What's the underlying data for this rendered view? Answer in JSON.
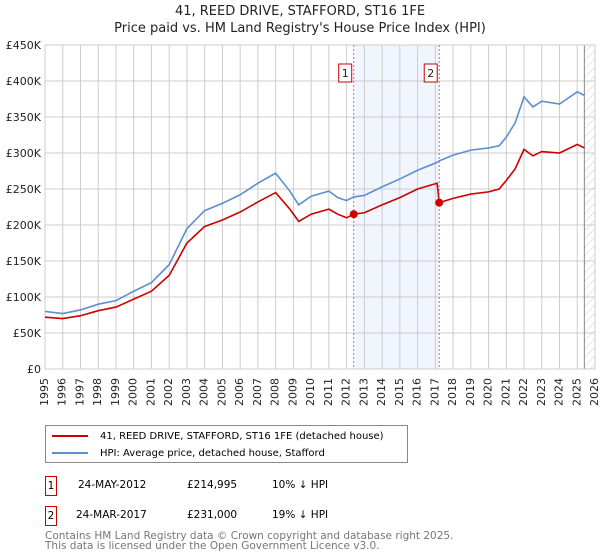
{
  "chart_data": {
    "type": "line",
    "title": "41, REED DRIVE, STAFFORD, ST16 1FE",
    "subtitle": "Price paid vs. HM Land Registry's House Price Index (HPI)",
    "xlim": [
      1995,
      2026
    ],
    "ylim": [
      0,
      450000
    ],
    "x_ticks": [
      "1995",
      "1996",
      "1997",
      "1998",
      "1999",
      "2000",
      "2001",
      "2002",
      "2003",
      "2004",
      "2005",
      "2006",
      "2007",
      "2008",
      "2009",
      "2010",
      "2011",
      "2012",
      "2013",
      "2014",
      "2015",
      "2016",
      "2017",
      "2018",
      "2019",
      "2020",
      "2021",
      "2022",
      "2023",
      "2024",
      "2025",
      "2026"
    ],
    "y_ticks": [
      {
        "v": 0,
        "label": "£0"
      },
      {
        "v": 50000,
        "label": "£50K"
      },
      {
        "v": 100000,
        "label": "£100K"
      },
      {
        "v": 150000,
        "label": "£150K"
      },
      {
        "v": 200000,
        "label": "£200K"
      },
      {
        "v": 250000,
        "label": "£250K"
      },
      {
        "v": 300000,
        "label": "£300K"
      },
      {
        "v": 350000,
        "label": "£350K"
      },
      {
        "v": 400000,
        "label": "£400K"
      },
      {
        "v": 450000,
        "label": "£450K"
      }
    ],
    "grid": true,
    "series": [
      {
        "name": "41, REED DRIVE, STAFFORD, ST16 1FE (detached house)",
        "color": "#cc0000",
        "x": [
          1995,
          1996,
          1997,
          1998,
          1999,
          2000,
          2001,
          2002,
          2003,
          2004,
          2005,
          2006,
          2007,
          2008,
          2008.8,
          2009.3,
          2010,
          2011,
          2011.5,
          2012.0,
          2012.4,
          2013,
          2014,
          2015,
          2016,
          2017.1,
          2017.22,
          2018,
          2019,
          2020,
          2020.6,
          2021,
          2021.5,
          2022,
          2022.5,
          2023,
          2024,
          2025,
          2025.4
        ],
        "y": [
          72000,
          70000,
          74000,
          81000,
          86000,
          97000,
          108000,
          130000,
          175000,
          198000,
          207000,
          218000,
          232000,
          245000,
          222000,
          205000,
          215000,
          222000,
          215000,
          210000,
          214995,
          217000,
          228000,
          238000,
          250000,
          258000,
          231000,
          237000,
          243000,
          246000,
          250000,
          262000,
          278000,
          305000,
          296000,
          302000,
          300000,
          312000,
          307000
        ]
      },
      {
        "name": "HPI: Average price, detached house, Stafford",
        "color": "#5b8fd0",
        "x": [
          1995,
          1996,
          1997,
          1998,
          1999,
          2000,
          2001,
          2002,
          2003,
          2004,
          2005,
          2006,
          2007,
          2008,
          2008.8,
          2009.3,
          2010,
          2011,
          2011.5,
          2012.0,
          2012.4,
          2013,
          2014,
          2015,
          2016,
          2017.1,
          2017.22,
          2018,
          2019,
          2020,
          2020.6,
          2021,
          2021.5,
          2022,
          2022.5,
          2023,
          2024,
          2025,
          2025.4
        ],
        "y": [
          80000,
          77000,
          82000,
          90000,
          95000,
          108000,
          120000,
          145000,
          195000,
          220000,
          230000,
          242000,
          258000,
          272000,
          247000,
          228000,
          240000,
          247000,
          238000,
          234000,
          239000,
          241000,
          253000,
          264000,
          276000,
          287000,
          289000,
          297000,
          304000,
          307000,
          310000,
          322000,
          342000,
          378000,
          364000,
          372000,
          368000,
          385000,
          380000
        ]
      }
    ],
    "sales": [
      {
        "id": "1",
        "date": "24-MAY-2012",
        "x": 2012.4,
        "price_label": "£214,995",
        "price": 214995,
        "hpi_diff": "10% ↓ HPI"
      },
      {
        "id": "2",
        "date": "24-MAR-2017",
        "x": 2017.22,
        "price_label": "£231,000",
        "price": 231000,
        "hpi_diff": "19% ↓ HPI"
      }
    ],
    "data_end": 2025.4,
    "legend": "bottom"
  },
  "footer": {
    "line1": "Contains HM Land Registry data © Crown copyright and database right 2025.",
    "line2": "This data is licensed under the Open Government Licence v3.0."
  }
}
